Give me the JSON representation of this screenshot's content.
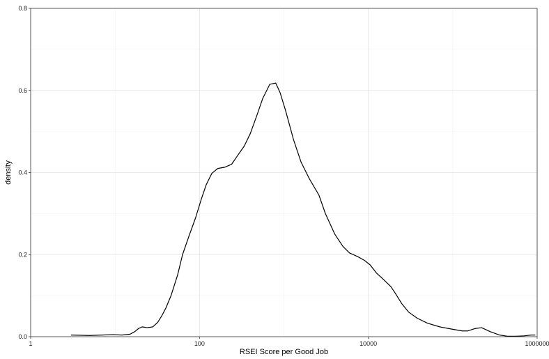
{
  "chart_data": {
    "type": "area",
    "title": "",
    "xlabel": "RSEI Score per Good Job",
    "ylabel": "density",
    "x_scale": "log10",
    "xlim": [
      1,
      1000000
    ],
    "ylim": [
      0,
      0.8
    ],
    "x_ticks": [
      {
        "value": 1,
        "label": "1"
      },
      {
        "value": 100,
        "label": "100"
      },
      {
        "value": 10000,
        "label": "10000"
      },
      {
        "value": 1000000,
        "label": "1000000"
      }
    ],
    "x_minor_ticks": [
      10,
      1000,
      100000
    ],
    "y_ticks": [
      {
        "value": 0,
        "label": "0.0"
      },
      {
        "value": 0.2,
        "label": "0.2"
      },
      {
        "value": 0.4,
        "label": "0.4"
      },
      {
        "value": 0.6,
        "label": "0.6"
      },
      {
        "value": 0.8,
        "label": "0.8"
      }
    ],
    "y_minor_ticks": [
      0.1,
      0.3,
      0.5,
      0.7
    ],
    "grid": true,
    "series": [
      {
        "points": [
          [
            3,
            0.004
          ],
          [
            5,
            0.003
          ],
          [
            7,
            0.004
          ],
          [
            9.5,
            0.005
          ],
          [
            12,
            0.004
          ],
          [
            15,
            0.006
          ],
          [
            17,
            0.012
          ],
          [
            19,
            0.02
          ],
          [
            21,
            0.024
          ],
          [
            24,
            0.022
          ],
          [
            28,
            0.024
          ],
          [
            32,
            0.035
          ],
          [
            36,
            0.052
          ],
          [
            40,
            0.07
          ],
          [
            46,
            0.1
          ],
          [
            55,
            0.15
          ],
          [
            63,
            0.2
          ],
          [
            75,
            0.245
          ],
          [
            90,
            0.29
          ],
          [
            105,
            0.335
          ],
          [
            120,
            0.37
          ],
          [
            140,
            0.398
          ],
          [
            165,
            0.41
          ],
          [
            200,
            0.413
          ],
          [
            240,
            0.42
          ],
          [
            280,
            0.44
          ],
          [
            340,
            0.465
          ],
          [
            400,
            0.495
          ],
          [
            480,
            0.54
          ],
          [
            560,
            0.58
          ],
          [
            680,
            0.615
          ],
          [
            800,
            0.618
          ],
          [
            900,
            0.595
          ],
          [
            1050,
            0.55
          ],
          [
            1300,
            0.48
          ],
          [
            1600,
            0.425
          ],
          [
            2000,
            0.385
          ],
          [
            2600,
            0.345
          ],
          [
            3100,
            0.3
          ],
          [
            4000,
            0.25
          ],
          [
            5000,
            0.22
          ],
          [
            6000,
            0.204
          ],
          [
            7500,
            0.195
          ],
          [
            9000,
            0.186
          ],
          [
            10500,
            0.175
          ],
          [
            12500,
            0.155
          ],
          [
            15000,
            0.14
          ],
          [
            18500,
            0.122
          ],
          [
            21000,
            0.105
          ],
          [
            25000,
            0.08
          ],
          [
            30000,
            0.06
          ],
          [
            38000,
            0.045
          ],
          [
            50000,
            0.033
          ],
          [
            70000,
            0.024
          ],
          [
            100000,
            0.018
          ],
          [
            130000,
            0.014
          ],
          [
            150000,
            0.014
          ],
          [
            185000,
            0.02
          ],
          [
            220000,
            0.022
          ],
          [
            280000,
            0.012
          ],
          [
            360000,
            0.004
          ],
          [
            450000,
            0.001
          ],
          [
            560000,
            0.001
          ],
          [
            700000,
            0.002
          ],
          [
            850000,
            0.004
          ],
          [
            950000,
            0.004
          ]
        ]
      }
    ]
  }
}
